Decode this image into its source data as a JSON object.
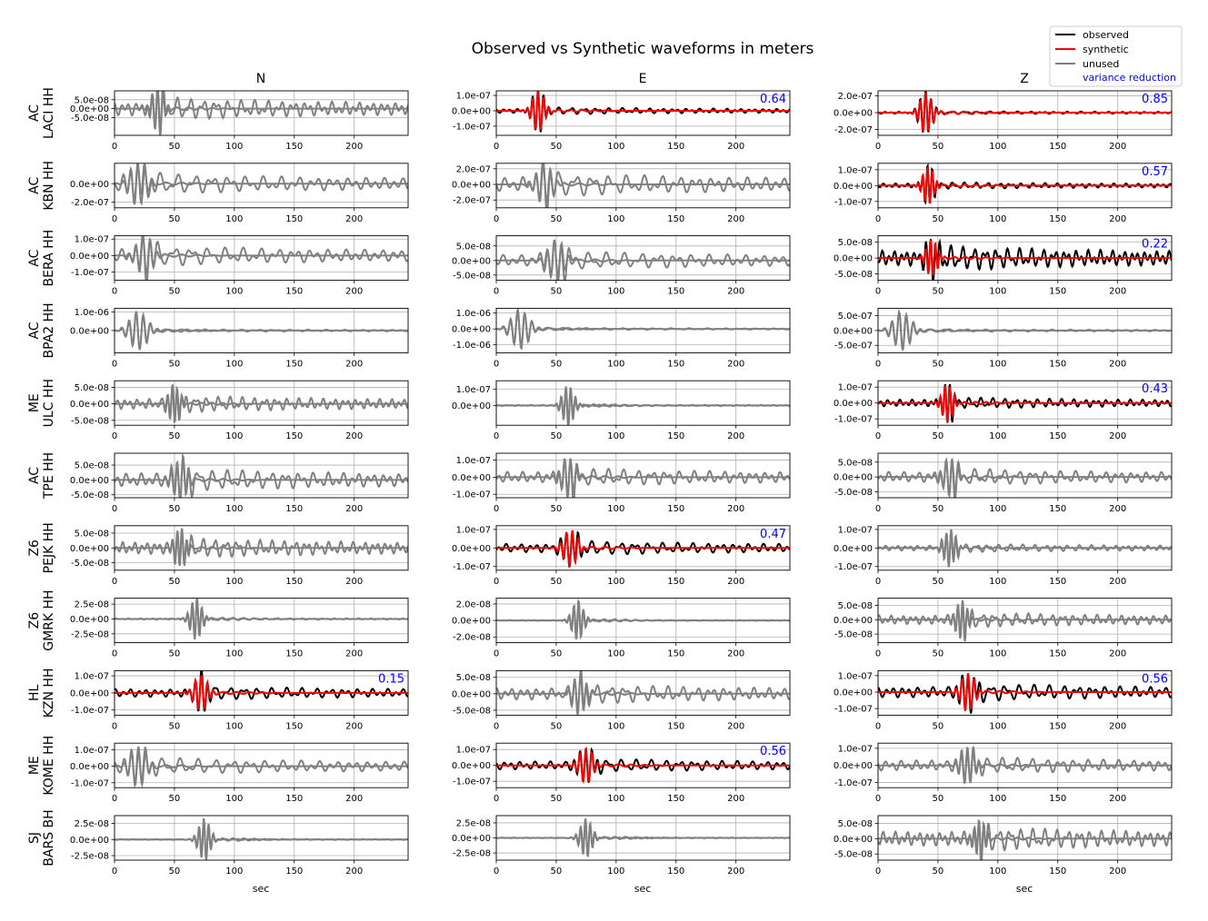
{
  "figure": {
    "title": "Observed vs Synthetic waveforms in meters",
    "column_titles": [
      "N",
      "E",
      "Z"
    ],
    "xlabel": "sec",
    "legend": {
      "placement": "top-right",
      "entries": [
        {
          "label": "observed",
          "color": "#000000"
        },
        {
          "label": "synthetic",
          "color": "#ff0000"
        },
        {
          "label": "unused",
          "color": "#808080"
        },
        {
          "label": "variance reduction",
          "color": "#0000ff"
        }
      ]
    }
  },
  "chart_data": [
    {
      "type": "line",
      "station": "AC\nLACI HH",
      "component": "N",
      "used": false,
      "xlim": [
        0,
        245
      ],
      "xticks": [
        0,
        50,
        100,
        150,
        200
      ],
      "yticks": [
        "5.0e-08",
        "0.0e+00",
        "-5.0e-08"
      ],
      "ylim": [
        -1.5e-07,
        1e-07
      ],
      "grid": true,
      "series": [
        {
          "name": "unused",
          "color": "#808080"
        }
      ]
    },
    {
      "type": "line",
      "station": "AC\nLACI HH",
      "component": "E",
      "used": true,
      "variance_reduction": "0.64",
      "xlim": [
        0,
        245
      ],
      "xticks": [
        0,
        50,
        100,
        150,
        200
      ],
      "yticks": [
        "1.0e-07",
        "0.0e+00",
        "-1.0e-07"
      ],
      "ylim": [
        -1.6e-07,
        1.3e-07
      ],
      "grid": true,
      "series": [
        {
          "name": "observed",
          "color": "#000000"
        },
        {
          "name": "synthetic",
          "color": "#ff0000"
        }
      ]
    },
    {
      "type": "line",
      "station": "AC\nLACI HH",
      "component": "Z",
      "used": true,
      "variance_reduction": "0.85",
      "xlim": [
        0,
        245
      ],
      "xticks": [
        0,
        50,
        100,
        150,
        200
      ],
      "yticks": [
        "2.0e-07",
        "0.0e+00",
        "-2.0e-07"
      ],
      "ylim": [
        -2.7e-07,
        2.6e-07
      ],
      "grid": true,
      "series": [
        {
          "name": "observed",
          "color": "#000000"
        },
        {
          "name": "synthetic",
          "color": "#ff0000"
        }
      ]
    },
    {
      "type": "line",
      "station": "AC\nKBN HH",
      "component": "N",
      "used": false,
      "xlim": [
        0,
        245
      ],
      "xticks": [
        0,
        50,
        100,
        150,
        200
      ],
      "yticks": [
        "0.0e+00",
        "-2.0e-07"
      ],
      "ylim": [
        -2.6e-07,
        2.2e-07
      ],
      "grid": true,
      "series": [
        {
          "name": "unused",
          "color": "#808080"
        }
      ]
    },
    {
      "type": "line",
      "station": "AC\nKBN HH",
      "component": "E",
      "used": false,
      "xlim": [
        0,
        245
      ],
      "xticks": [
        0,
        50,
        100,
        150,
        200
      ],
      "yticks": [
        "2.0e-07",
        "0.0e+00",
        "-2.0e-07"
      ],
      "ylim": [
        -3e-07,
        2.7e-07
      ],
      "grid": true,
      "series": [
        {
          "name": "unused",
          "color": "#808080"
        }
      ]
    },
    {
      "type": "line",
      "station": "AC\nKBN HH",
      "component": "Z",
      "used": true,
      "variance_reduction": "0.57",
      "xlim": [
        0,
        245
      ],
      "xticks": [
        0,
        50,
        100,
        150,
        200
      ],
      "yticks": [
        "1.0e-07",
        "0.0e+00",
        "-1.0e-07"
      ],
      "ylim": [
        -1.4e-07,
        1.4e-07
      ],
      "grid": true,
      "series": [
        {
          "name": "observed",
          "color": "#000000"
        },
        {
          "name": "synthetic",
          "color": "#ff0000"
        }
      ]
    },
    {
      "type": "line",
      "station": "AC\nBERA HH",
      "component": "N",
      "used": false,
      "xlim": [
        0,
        245
      ],
      "xticks": [
        0,
        50,
        100,
        150,
        200
      ],
      "yticks": [
        "1.0e-07",
        "0.0e+00",
        "-1.0e-07"
      ],
      "ylim": [
        -1.5e-07,
        1.2e-07
      ],
      "grid": true,
      "series": [
        {
          "name": "unused",
          "color": "#808080"
        }
      ]
    },
    {
      "type": "line",
      "station": "AC\nBERA HH",
      "component": "E",
      "used": false,
      "xlim": [
        0,
        245
      ],
      "xticks": [
        0,
        50,
        100,
        150,
        200
      ],
      "yticks": [
        "5.0e-08",
        "0.0e+00",
        "-5.0e-08"
      ],
      "ylim": [
        -6.8e-08,
        8.5e-08
      ],
      "grid": true,
      "series": [
        {
          "name": "unused",
          "color": "#808080"
        }
      ]
    },
    {
      "type": "line",
      "station": "AC\nBERA HH",
      "component": "Z",
      "used": true,
      "variance_reduction": "0.22",
      "xlim": [
        0,
        245
      ],
      "xticks": [
        0,
        50,
        100,
        150,
        200
      ],
      "yticks": [
        "5.0e-08",
        "0.0e+00",
        "-5.0e-08"
      ],
      "ylim": [
        -7e-08,
        7e-08
      ],
      "grid": true,
      "series": [
        {
          "name": "observed",
          "color": "#000000"
        },
        {
          "name": "synthetic",
          "color": "#ff0000"
        }
      ]
    },
    {
      "type": "line",
      "station": "AC\nBPA2 HH",
      "component": "N",
      "used": false,
      "xlim": [
        0,
        245
      ],
      "xticks": [
        0,
        50,
        100,
        150,
        200
      ],
      "yticks": [
        "1.0e-06",
        "0.0e+00"
      ],
      "ylim": [
        -1.2e-06,
        1.2e-06
      ],
      "grid": true,
      "series": [
        {
          "name": "unused",
          "color": "#808080"
        }
      ]
    },
    {
      "type": "line",
      "station": "AC\nBPA2 HH",
      "component": "E",
      "used": false,
      "xlim": [
        0,
        245
      ],
      "xticks": [
        0,
        50,
        100,
        150,
        200
      ],
      "yticks": [
        "1.0e-06",
        "0.0e+00",
        "-1.0e-06"
      ],
      "ylim": [
        -1.5e-06,
        1.3e-06
      ],
      "grid": true,
      "series": [
        {
          "name": "unused",
          "color": "#808080"
        }
      ]
    },
    {
      "type": "line",
      "station": "AC\nBPA2 HH",
      "component": "Z",
      "used": false,
      "xlim": [
        0,
        245
      ],
      "xticks": [
        0,
        50,
        100,
        150,
        200
      ],
      "yticks": [
        "5.0e-07",
        "0.0e+00",
        "-5.0e-07"
      ],
      "ylim": [
        -7.5e-07,
        7.5e-07
      ],
      "grid": true,
      "series": [
        {
          "name": "unused",
          "color": "#808080"
        }
      ]
    },
    {
      "type": "line",
      "station": "ME\nULC HH",
      "component": "N",
      "used": false,
      "xlim": [
        0,
        245
      ],
      "xticks": [
        0,
        50,
        100,
        150,
        200
      ],
      "yticks": [
        "5.0e-08",
        "0.0e+00",
        "-5.0e-08"
      ],
      "ylim": [
        -6.5e-08,
        7e-08
      ],
      "grid": true,
      "series": [
        {
          "name": "unused",
          "color": "#808080"
        }
      ]
    },
    {
      "type": "line",
      "station": "ME\nULC HH",
      "component": "E",
      "used": false,
      "xlim": [
        0,
        245
      ],
      "xticks": [
        0,
        50,
        100,
        150,
        200
      ],
      "yticks": [
        "1.0e-07",
        "0.0e+00"
      ],
      "ylim": [
        -1.2e-07,
        1.5e-07
      ],
      "grid": true,
      "series": [
        {
          "name": "unused",
          "color": "#808080"
        }
      ]
    },
    {
      "type": "line",
      "station": "ME\nULC HH",
      "component": "Z",
      "used": true,
      "variance_reduction": "0.43",
      "xlim": [
        0,
        245
      ],
      "xticks": [
        0,
        50,
        100,
        150,
        200
      ],
      "yticks": [
        "1.0e-07",
        "0.0e+00",
        "-1.0e-07"
      ],
      "ylim": [
        -1.4e-07,
        1.4e-07
      ],
      "grid": true,
      "series": [
        {
          "name": "observed",
          "color": "#000000"
        },
        {
          "name": "synthetic",
          "color": "#ff0000"
        }
      ]
    },
    {
      "type": "line",
      "station": "AC\nTPE HH",
      "component": "N",
      "used": false,
      "xlim": [
        0,
        245
      ],
      "xticks": [
        0,
        50,
        100,
        150,
        200
      ],
      "yticks": [
        "5.0e-08",
        "0.0e+00",
        "-5.0e-08"
      ],
      "ylim": [
        -6e-08,
        9e-08
      ],
      "grid": true,
      "series": [
        {
          "name": "unused",
          "color": "#808080"
        }
      ]
    },
    {
      "type": "line",
      "station": "AC\nTPE HH",
      "component": "E",
      "used": false,
      "xlim": [
        0,
        245
      ],
      "xticks": [
        0,
        50,
        100,
        150,
        200
      ],
      "yticks": [
        "1.0e-07",
        "0.0e+00",
        "-1.0e-07"
      ],
      "ylim": [
        -1.2e-07,
        1.4e-07
      ],
      "grid": true,
      "series": [
        {
          "name": "unused",
          "color": "#808080"
        }
      ]
    },
    {
      "type": "line",
      "station": "AC\nTPE HH",
      "component": "Z",
      "used": false,
      "xlim": [
        0,
        245
      ],
      "xticks": [
        0,
        50,
        100,
        150,
        200
      ],
      "yticks": [
        "5.0e-08",
        "0.0e+00",
        "-5.0e-08"
      ],
      "ylim": [
        -7e-08,
        8e-08
      ],
      "grid": true,
      "series": [
        {
          "name": "unused",
          "color": "#808080"
        }
      ]
    },
    {
      "type": "line",
      "station": "Z6\nPEJK HH",
      "component": "N",
      "used": false,
      "xlim": [
        0,
        245
      ],
      "xticks": [
        0,
        50,
        100,
        150,
        200
      ],
      "yticks": [
        "5.0e-08",
        "0.0e+00",
        "-5.0e-08"
      ],
      "ylim": [
        -7.5e-08,
        7.5e-08
      ],
      "grid": true,
      "series": [
        {
          "name": "unused",
          "color": "#808080"
        }
      ]
    },
    {
      "type": "line",
      "station": "Z6\nPEJK HH",
      "component": "E",
      "used": true,
      "variance_reduction": "0.47",
      "xlim": [
        0,
        245
      ],
      "xticks": [
        0,
        50,
        100,
        150,
        200
      ],
      "yticks": [
        "1.0e-07",
        "0.0e+00",
        "-1.0e-07"
      ],
      "ylim": [
        -1.2e-07,
        1.2e-07
      ],
      "grid": true,
      "series": [
        {
          "name": "observed",
          "color": "#000000"
        },
        {
          "name": "synthetic",
          "color": "#ff0000"
        }
      ]
    },
    {
      "type": "line",
      "station": "Z6\nPEJK HH",
      "component": "Z",
      "used": false,
      "xlim": [
        0,
        245
      ],
      "xticks": [
        0,
        50,
        100,
        150,
        200
      ],
      "yticks": [
        "1.0e-07",
        "0.0e+00",
        "-1.0e-07"
      ],
      "ylim": [
        -1.2e-07,
        1.2e-07
      ],
      "grid": true,
      "series": [
        {
          "name": "unused",
          "color": "#808080"
        }
      ]
    },
    {
      "type": "line",
      "station": "Z6\nGMRK HH",
      "component": "N",
      "used": false,
      "xlim": [
        0,
        245
      ],
      "xticks": [
        0,
        50,
        100,
        150,
        200
      ],
      "yticks": [
        "2.5e-08",
        "0.0e+00",
        "-2.5e-08"
      ],
      "ylim": [
        -4e-08,
        3.5e-08
      ],
      "grid": true,
      "series": [
        {
          "name": "unused",
          "color": "#808080"
        }
      ]
    },
    {
      "type": "line",
      "station": "Z6\nGMRK HH",
      "component": "E",
      "used": false,
      "xlim": [
        0,
        245
      ],
      "xticks": [
        0,
        50,
        100,
        150,
        200
      ],
      "yticks": [
        "2.0e-08",
        "0.0e+00",
        "-2.0e-08"
      ],
      "ylim": [
        -2.7e-08,
        2.7e-08
      ],
      "grid": true,
      "series": [
        {
          "name": "unused",
          "color": "#808080"
        }
      ]
    },
    {
      "type": "line",
      "station": "Z6\nGMRK HH",
      "component": "Z",
      "used": false,
      "xlim": [
        0,
        245
      ],
      "xticks": [
        0,
        50,
        100,
        150,
        200
      ],
      "yticks": [
        "5.0e-08",
        "0.0e+00",
        "-5.0e-08"
      ],
      "ylim": [
        -8e-08,
        7.5e-08
      ],
      "grid": true,
      "series": [
        {
          "name": "unused",
          "color": "#808080"
        }
      ]
    },
    {
      "type": "line",
      "station": "HL\nKZN HH",
      "component": "N",
      "used": true,
      "variance_reduction": "0.15",
      "xlim": [
        0,
        245
      ],
      "xticks": [
        0,
        50,
        100,
        150,
        200
      ],
      "yticks": [
        "1.0e-07",
        "0.0e+00",
        "-1.0e-07"
      ],
      "ylim": [
        -1.3e-07,
        1.3e-07
      ],
      "grid": true,
      "series": [
        {
          "name": "observed",
          "color": "#000000"
        },
        {
          "name": "synthetic",
          "color": "#ff0000"
        }
      ]
    },
    {
      "type": "line",
      "station": "HL\nKZN HH",
      "component": "E",
      "used": false,
      "xlim": [
        0,
        245
      ],
      "xticks": [
        0,
        50,
        100,
        150,
        200
      ],
      "yticks": [
        "5.0e-08",
        "0.0e+00",
        "-5.0e-08"
      ],
      "ylim": [
        -6.5e-08,
        7e-08
      ],
      "grid": true,
      "series": [
        {
          "name": "unused",
          "color": "#808080"
        }
      ]
    },
    {
      "type": "line",
      "station": "HL\nKZN HH",
      "component": "Z",
      "used": true,
      "variance_reduction": "0.56",
      "xlim": [
        0,
        245
      ],
      "xticks": [
        0,
        50,
        100,
        150,
        200
      ],
      "yticks": [
        "1.0e-07",
        "0.0e+00",
        "-1.0e-07"
      ],
      "ylim": [
        -1.4e-07,
        1.3e-07
      ],
      "grid": true,
      "series": [
        {
          "name": "observed",
          "color": "#000000"
        },
        {
          "name": "synthetic",
          "color": "#ff0000"
        }
      ]
    },
    {
      "type": "line",
      "station": "ME\nKOME HH",
      "component": "N",
      "used": false,
      "xlim": [
        0,
        245
      ],
      "xticks": [
        0,
        50,
        100,
        150,
        200
      ],
      "yticks": [
        "1.0e-07",
        "0.0e+00",
        "-1.0e-07"
      ],
      "ylim": [
        -1.3e-07,
        1.4e-07
      ],
      "grid": true,
      "series": [
        {
          "name": "unused",
          "color": "#808080"
        }
      ]
    },
    {
      "type": "line",
      "station": "ME\nKOME HH",
      "component": "E",
      "used": true,
      "variance_reduction": "0.56",
      "xlim": [
        0,
        245
      ],
      "xticks": [
        0,
        50,
        100,
        150,
        200
      ],
      "yticks": [
        "1.0e-07",
        "0.0e+00",
        "-1.0e-07"
      ],
      "ylim": [
        -1.4e-07,
        1.4e-07
      ],
      "grid": true,
      "series": [
        {
          "name": "observed",
          "color": "#000000"
        },
        {
          "name": "synthetic",
          "color": "#ff0000"
        }
      ]
    },
    {
      "type": "line",
      "station": "ME\nKOME HH",
      "component": "Z",
      "used": false,
      "xlim": [
        0,
        245
      ],
      "xticks": [
        0,
        50,
        100,
        150,
        200
      ],
      "yticks": [
        "1.0e-07",
        "0.0e+00",
        "-1.0e-07"
      ],
      "ylim": [
        -1.3e-07,
        1.3e-07
      ],
      "grid": true,
      "series": [
        {
          "name": "unused",
          "color": "#808080"
        }
      ]
    },
    {
      "type": "line",
      "station": "SJ\nBARS BH",
      "component": "N",
      "used": false,
      "xlim": [
        0,
        245
      ],
      "xticks": [
        0,
        50,
        100,
        150,
        200
      ],
      "yticks": [
        "2.5e-08",
        "0.0e+00",
        "-2.5e-08"
      ],
      "ylim": [
        -3.2e-08,
        3.7e-08
      ],
      "grid": true,
      "series": [
        {
          "name": "unused",
          "color": "#808080"
        }
      ]
    },
    {
      "type": "line",
      "station": "SJ\nBARS BH",
      "component": "E",
      "used": false,
      "xlim": [
        0,
        245
      ],
      "xticks": [
        0,
        50,
        100,
        150,
        200
      ],
      "yticks": [
        "2.5e-08",
        "0.0e+00",
        "-2.5e-08"
      ],
      "ylim": [
        -3.7e-08,
        3.7e-08
      ],
      "grid": true,
      "series": [
        {
          "name": "unused",
          "color": "#808080"
        }
      ]
    },
    {
      "type": "line",
      "station": "SJ\nBARS BH",
      "component": "Z",
      "used": false,
      "xlim": [
        0,
        245
      ],
      "xticks": [
        0,
        50,
        100,
        150,
        200
      ],
      "yticks": [
        "5.0e-08",
        "0.0e+00",
        "-5.0e-08"
      ],
      "ylim": [
        -7e-08,
        7.5e-08
      ],
      "grid": true,
      "series": [
        {
          "name": "unused",
          "color": "#808080"
        }
      ]
    }
  ]
}
